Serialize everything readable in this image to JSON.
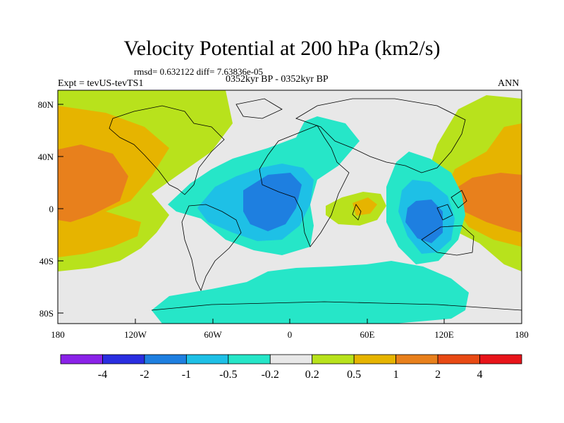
{
  "title": "Velocity Potential at 200 hPa (km2/s)",
  "stats": "rmsd= 0.632122 diff= 7.63836e-05",
  "left_label": "Expt = tevUS-tevTS1",
  "center_label": "0352kyr BP - 0352kyr BP",
  "right_label": "ANN",
  "lat_ticks": [
    "80N",
    "40N",
    "0",
    "40S",
    "80S"
  ],
  "lon_ticks": [
    "180",
    "120W",
    "60W",
    "0",
    "60E",
    "120E",
    "180"
  ],
  "colorbar": {
    "labels": [
      "-4",
      "-2",
      "-1",
      "-0.5",
      "-0.2",
      "0.2",
      "0.5",
      "1",
      "2",
      "4"
    ],
    "colors": [
      "#8a22e8",
      "#2a2ee0",
      "#1e7fe0",
      "#1ec0e6",
      "#26e6c8",
      "#e8e8e8",
      "#b8e21c",
      "#e6b400",
      "#e8801c",
      "#e84a14",
      "#e8141a"
    ]
  },
  "colors": {
    "neutral": "#e8e8e8",
    "weak_positive": "#b8e21c",
    "positive": "#e6b400",
    "strong_positive": "#e8801c",
    "weak_negative": "#26e6c8",
    "negative": "#1ec0e6",
    "strong_negative": "#1e7fe0"
  }
}
